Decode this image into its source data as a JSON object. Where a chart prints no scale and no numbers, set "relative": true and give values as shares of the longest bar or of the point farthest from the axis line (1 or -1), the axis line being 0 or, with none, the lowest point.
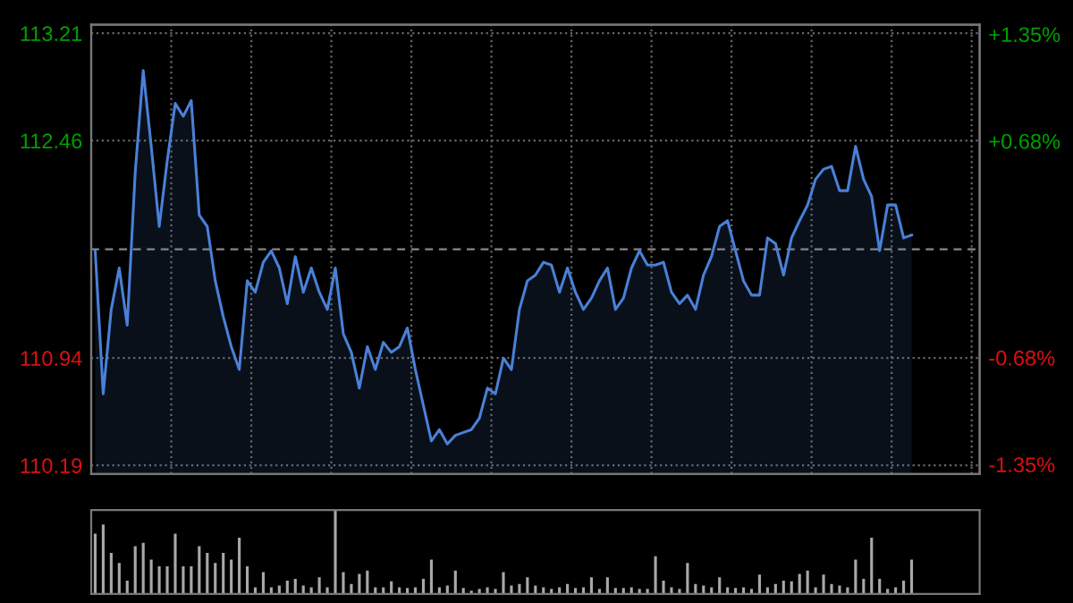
{
  "chart_data": [
    {
      "type": "area",
      "categories": [
        null,
        null,
        null,
        null,
        null,
        null,
        null,
        null,
        null,
        null,
        null,
        null,
        null,
        null,
        null,
        null,
        null,
        null,
        null,
        null,
        null,
        null,
        null,
        null,
        null,
        null,
        null,
        null,
        null,
        null,
        null,
        null,
        null,
        null,
        null,
        null,
        null,
        null,
        null,
        null,
        null,
        null,
        null,
        null,
        null,
        null,
        null,
        null,
        null,
        null,
        null,
        null,
        null,
        null,
        null,
        null,
        null,
        null,
        null,
        null,
        null,
        null,
        null,
        null,
        null,
        null,
        null,
        null,
        null,
        null,
        null,
        null,
        null,
        null,
        null,
        null,
        null,
        null,
        null,
        null,
        null,
        null,
        null,
        null,
        null,
        null,
        null,
        null,
        null,
        null,
        null,
        null,
        null,
        null,
        null,
        null,
        null,
        null,
        null,
        null,
        null,
        null,
        null
      ],
      "series": [
        {
          "color": "#4a80d8",
          "values": [
            111.69,
            110.69,
            111.28,
            111.57,
            111.17,
            112.24,
            112.95,
            112.42,
            111.86,
            112.32,
            112.72,
            112.63,
            112.74,
            111.94,
            111.86,
            111.48,
            111.23,
            111.02,
            110.86,
            111.48,
            111.4,
            111.61,
            111.69,
            111.57,
            111.32,
            111.65,
            111.4,
            111.57,
            111.4,
            111.28,
            111.57,
            111.11,
            110.98,
            110.73,
            111.02,
            110.86,
            111.05,
            110.98,
            111.02,
            111.15,
            110.86,
            110.61,
            110.36,
            110.44,
            110.34,
            110.4,
            110.42,
            110.44,
            110.52,
            110.73,
            110.69,
            110.94,
            110.86,
            111.28,
            111.48,
            111.52,
            111.61,
            111.59,
            111.4,
            111.57,
            111.4,
            111.28,
            111.36,
            111.48,
            111.57,
            111.28,
            111.36,
            111.57,
            111.69,
            111.59,
            111.59,
            111.61,
            111.4,
            111.32,
            111.38,
            111.28,
            111.52,
            111.65,
            111.86,
            111.9,
            111.69,
            111.48,
            111.38,
            111.38,
            111.78,
            111.74,
            111.52,
            111.78,
            111.9,
            112.01,
            112.19,
            112.26,
            112.28,
            112.11,
            112.11,
            112.42,
            112.19,
            112.07,
            111.69,
            112.01,
            112.01,
            111.78,
            111.8
          ]
        }
      ],
      "ylim": [
        110.13,
        113.27
      ],
      "yticks": [
        110.19,
        110.94,
        112.46,
        113.21
      ],
      "y2lim": [
        -1.41,
        1.41
      ],
      "y2ticks": [
        {
          "value": -1.35,
          "label": "-1.35%"
        },
        {
          "value": -0.68,
          "label": "-0.68%"
        },
        {
          "value": 0.68,
          "label": "+0.68%"
        },
        {
          "value": 1.35,
          "label": "+1.35%"
        }
      ],
      "ref_lines": [
        {
          "axis": "y",
          "value": 111.7,
          "color": "#888888",
          "line_style": "dashed"
        }
      ],
      "grid": true,
      "tick_labels": "y"
    },
    {
      "type": "bar",
      "relative": true,
      "categories": [
        null,
        null,
        null,
        null,
        null,
        null,
        null,
        null,
        null,
        null,
        null,
        null,
        null,
        null,
        null,
        null,
        null,
        null,
        null,
        null,
        null,
        null,
        null,
        null,
        null,
        null,
        null,
        null,
        null,
        null,
        null,
        null,
        null,
        null,
        null,
        null,
        null,
        null,
        null,
        null,
        null,
        null,
        null,
        null,
        null,
        null,
        null,
        null,
        null,
        null,
        null,
        null,
        null,
        null,
        null,
        null,
        null,
        null,
        null,
        null,
        null,
        null,
        null,
        null,
        null,
        null,
        null,
        null,
        null,
        null,
        null,
        null,
        null,
        null,
        null,
        null,
        null,
        null,
        null,
        null,
        null,
        null,
        null,
        null,
        null,
        null,
        null,
        null,
        null,
        null,
        null,
        null,
        null,
        null,
        null,
        null,
        null,
        null,
        null,
        null,
        null,
        null,
        null
      ],
      "series": [
        {
          "color": "#a8a8a8",
          "values": [
            0.72,
            0.83,
            0.49,
            0.37,
            0.16,
            0.57,
            0.61,
            0.41,
            0.33,
            0.33,
            0.72,
            0.33,
            0.33,
            0.57,
            0.49,
            0.37,
            0.49,
            0.41,
            0.67,
            0.33,
            0.08,
            0.26,
            0.08,
            0.1,
            0.16,
            0.18,
            0.1,
            0.08,
            0.2,
            0.08,
            1.0,
            0.26,
            0.12,
            0.24,
            0.28,
            0.08,
            0.08,
            0.15,
            0.08,
            0.07,
            0.08,
            0.18,
            0.41,
            0.08,
            0.1,
            0.28,
            0.07,
            0.04,
            0.06,
            0.08,
            0.06,
            0.26,
            0.1,
            0.12,
            0.2,
            0.1,
            0.08,
            0.06,
            0.08,
            0.12,
            0.07,
            0.08,
            0.2,
            0.06,
            0.2,
            0.07,
            0.07,
            0.08,
            0.06,
            0.06,
            0.45,
            0.16,
            0.08,
            0.06,
            0.37,
            0.12,
            0.1,
            0.08,
            0.2,
            0.08,
            0.07,
            0.08,
            0.06,
            0.23,
            0.08,
            0.12,
            0.16,
            0.15,
            0.24,
            0.28,
            0.08,
            0.23,
            0.12,
            0.1,
            0.08,
            0.41,
            0.18,
            0.67,
            0.18,
            0.06,
            0.08,
            0.16,
            0.41
          ]
        }
      ],
      "tick_labels": false
    }
  ]
}
